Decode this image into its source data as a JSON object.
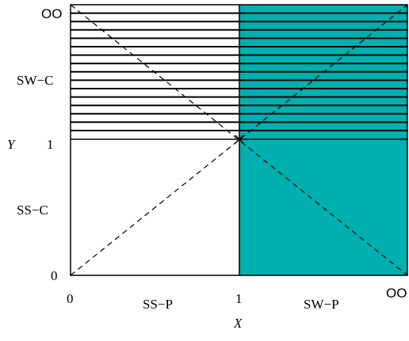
{
  "diagram": {
    "axes": {
      "x_label": "X",
      "y_label": "Y",
      "x_ticks": [
        "0",
        "1"
      ],
      "y_ticks": [
        "0",
        "1"
      ],
      "x_infinity_label": "OO",
      "y_infinity_label": "OO"
    },
    "regions": {
      "upper_left": "SW−C",
      "lower_left": "SS−C",
      "bottom_left": "SS−P",
      "bottom_right": "SW−P"
    },
    "colors": {
      "teal_fill": "#00b0ae",
      "line": "#000000",
      "background": "#ffffff"
    }
  }
}
